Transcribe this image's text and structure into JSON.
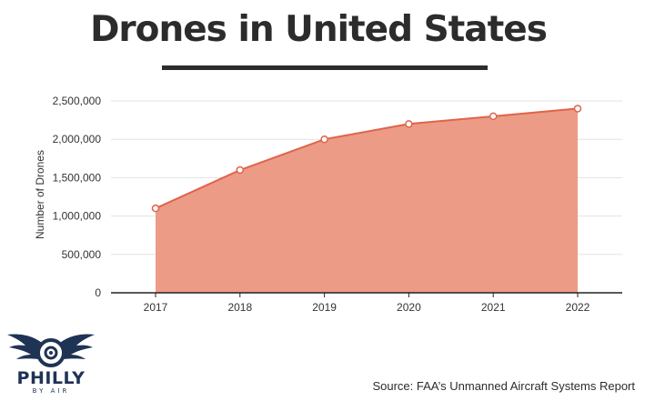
{
  "title": "Drones in United States",
  "source": "Source: FAA’s Unmanned Aircraft Systems Report",
  "logo": {
    "name": "PHILLY",
    "tagline": "BY AIR"
  },
  "colors": {
    "area_fill": "#ec9b86",
    "line": "#e0634a",
    "title": "#2c2c2c",
    "logo": "#1f3354"
  },
  "chart_data": {
    "type": "area",
    "title": "Drones in United States",
    "xlabel": "",
    "ylabel": "Number of Drones",
    "categories": [
      "2017",
      "2018",
      "2019",
      "2020",
      "2021",
      "2022"
    ],
    "values": [
      1100000,
      1600000,
      2000000,
      2200000,
      2300000,
      2400000
    ],
    "ylim": [
      0,
      2500000
    ],
    "yticks": [
      0,
      500000,
      1000000,
      1500000,
      2000000,
      2500000
    ],
    "ytick_labels": [
      "0",
      "500,000",
      "1,000,000",
      "1,500,000",
      "2,000,000",
      "2,500,000"
    ],
    "grid": true,
    "markers": true
  }
}
